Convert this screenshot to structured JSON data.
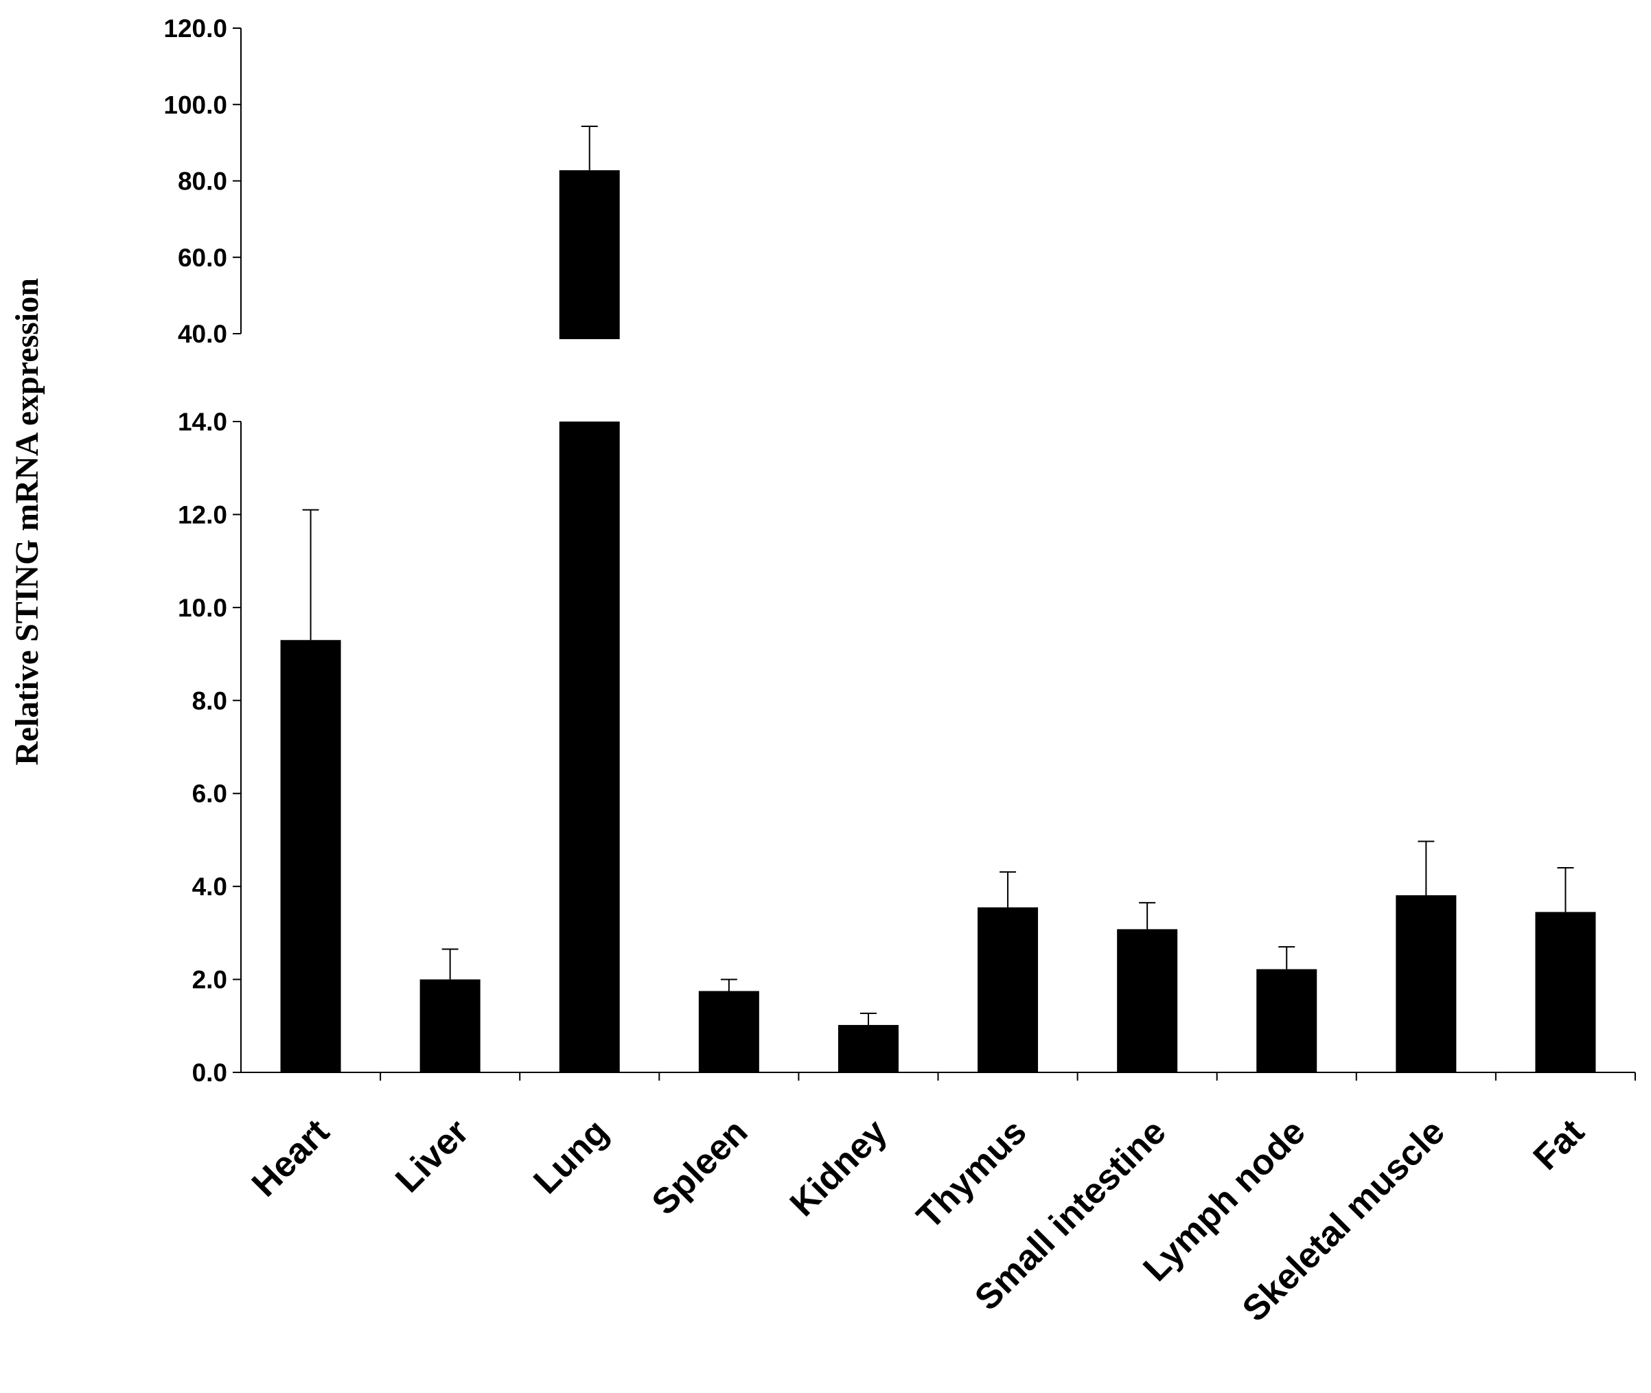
{
  "chart_data": {
    "type": "bar",
    "title": "",
    "xlabel": "",
    "ylabel": "Relative STING mRNA expression",
    "broken_axis": true,
    "ylim_lower": [
      0,
      14
    ],
    "ylim_upper": [
      40,
      120
    ],
    "yticks_lower": [
      "0.0",
      "2.0",
      "4.0",
      "6.0",
      "8.0",
      "10.0",
      "12.0",
      "14.0"
    ],
    "yticks_upper": [
      "40.0",
      "60.0",
      "80.0",
      "100.0",
      "120.0"
    ],
    "categories": [
      "Heart",
      "Liver",
      "Lung",
      "Spleen",
      "Kidney",
      "Thymus",
      "Small intestine",
      "Lymph node",
      "Skeletal muscle",
      "Fat"
    ],
    "values": [
      9.3,
      2.0,
      82.8,
      1.75,
      1.02,
      3.55,
      3.08,
      2.22,
      3.81,
      3.45
    ],
    "error_upper": [
      12.1,
      2.65,
      94.3,
      2.0,
      1.27,
      4.31,
      3.65,
      2.7,
      4.97,
      4.4
    ],
    "bar_color": "#000000",
    "grid": false,
    "legend": "none"
  }
}
